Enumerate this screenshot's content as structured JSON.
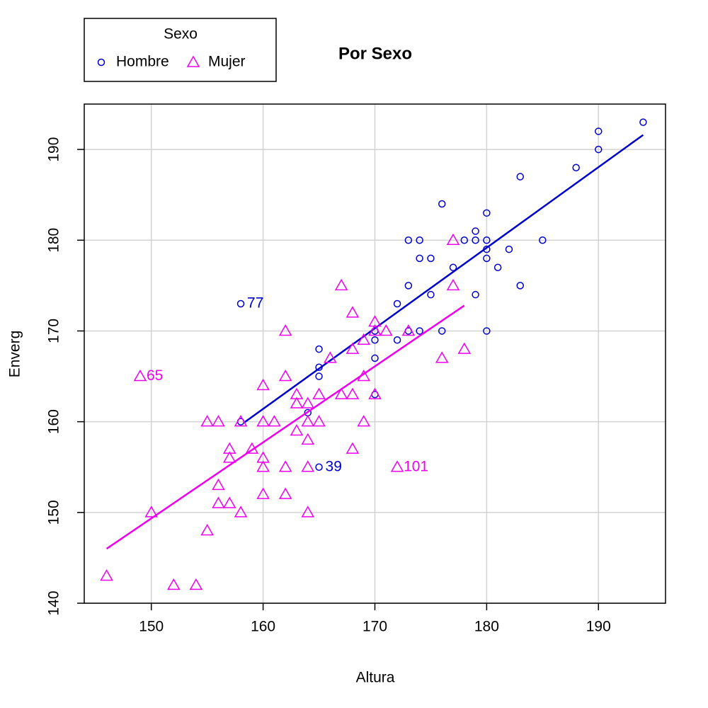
{
  "chart_data": {
    "type": "scatter",
    "title": "Por Sexo",
    "x_label": "Altura",
    "y_label": "Enverg",
    "xlim": [
      144,
      196
    ],
    "ylim": [
      140,
      195
    ],
    "xticks": [
      150,
      160,
      170,
      180,
      190
    ],
    "yticks": [
      140,
      150,
      160,
      170,
      180,
      190
    ],
    "grid": true,
    "legend_title": "Sexo",
    "legend_position": "top-left",
    "series": [
      {
        "name": "Hombre",
        "color": "#0000cc",
        "marker": "circle",
        "x": [
          194,
          190,
          190,
          188,
          183,
          176,
          180,
          179,
          173,
          174,
          178,
          179,
          180,
          185,
          180,
          182,
          174,
          175,
          180,
          177,
          181,
          173,
          183,
          175,
          179,
          158,
          172,
          170,
          173,
          174,
          176,
          180,
          170,
          172,
          165,
          170,
          165,
          165,
          170,
          164,
          158,
          165
        ],
        "y": [
          193,
          192,
          190,
          188,
          187,
          184,
          183,
          181,
          180,
          180,
          180,
          180,
          180,
          180,
          179,
          179,
          178,
          178,
          178,
          177,
          177,
          175,
          175,
          174,
          174,
          173,
          173,
          170,
          170,
          170,
          170,
          170,
          169,
          169,
          168,
          167,
          166,
          165,
          163,
          161,
          160,
          155
        ],
        "fit": {
          "x": [
            158.3,
            194
          ],
          "y": [
            159.9,
            191.6
          ]
        }
      },
      {
        "name": "Mujer",
        "color": "#ee00ee",
        "marker": "triangle",
        "x": [
          146,
          152,
          154,
          149,
          150,
          155,
          155,
          156,
          156,
          156,
          157,
          157,
          157,
          158,
          158,
          159,
          160,
          160,
          160,
          160,
          160,
          161,
          162,
          162,
          162,
          162,
          163,
          163,
          163,
          164,
          164,
          164,
          164,
          164,
          165,
          165,
          166,
          167,
          167,
          168,
          168,
          168,
          168,
          169,
          169,
          169,
          170,
          170,
          170,
          171,
          172,
          173,
          176,
          177,
          177,
          178
        ],
        "y": [
          143,
          142,
          142,
          165,
          150,
          148,
          160,
          160,
          153,
          151,
          157,
          156,
          151,
          150,
          160,
          157,
          164,
          160,
          156,
          155,
          152,
          160,
          170,
          165,
          155,
          152,
          163,
          162,
          159,
          162,
          160,
          158,
          155,
          150,
          163,
          160,
          167,
          175,
          163,
          172,
          168,
          163,
          157,
          169,
          165,
          160,
          171,
          170,
          163,
          170,
          155,
          170,
          167,
          180,
          175,
          168
        ],
        "fit": {
          "x": [
            146,
            178
          ],
          "y": [
            146,
            172.8
          ]
        }
      }
    ],
    "annotations": [
      {
        "text": "77",
        "x": 158,
        "y": 173,
        "series": 0
      },
      {
        "text": "39",
        "x": 165,
        "y": 155,
        "series": 0
      },
      {
        "text": "65",
        "x": 149,
        "y": 165,
        "series": 1
      },
      {
        "text": "101",
        "x": 172,
        "y": 155,
        "series": 1
      }
    ]
  }
}
